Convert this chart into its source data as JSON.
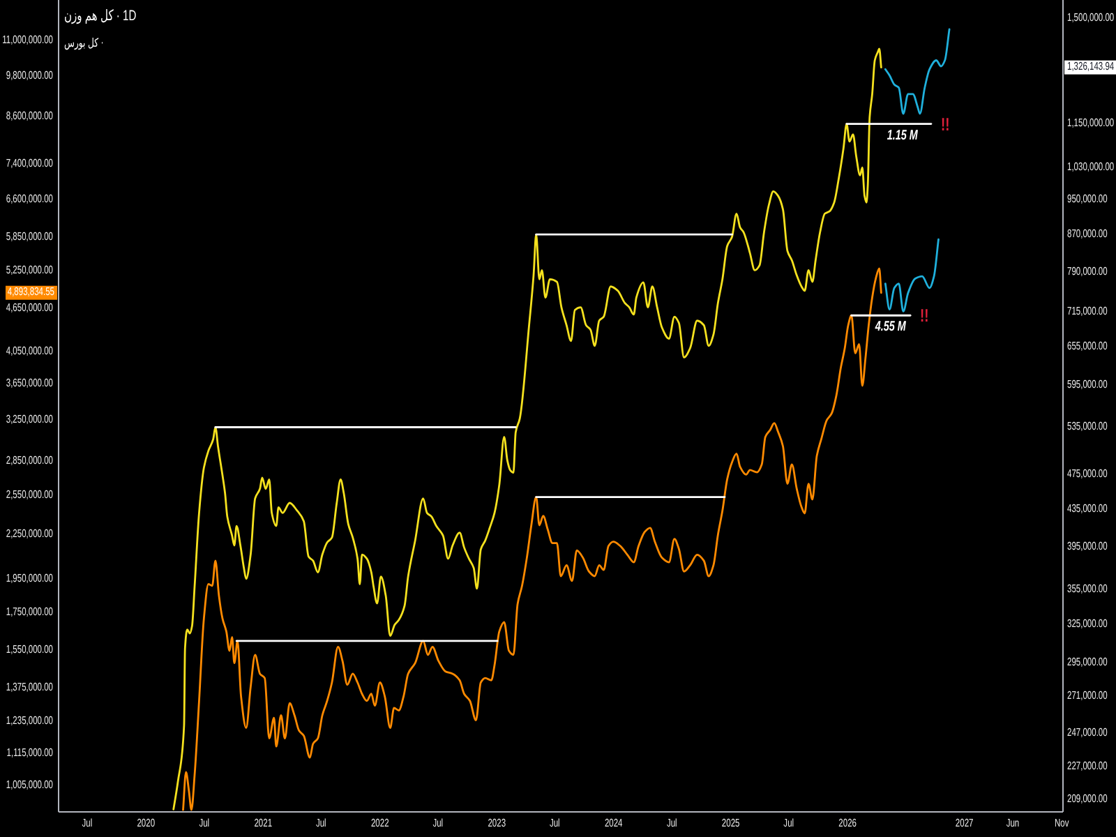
{
  "chart_data": [
    {
      "type": "line",
      "title": "کل هم وزن · 1D",
      "log": true,
      "xlim": [
        "2019-04-03",
        "2027-11-05"
      ],
      "xticks": [
        {
          "value": "2019-07-01",
          "label": "Jul"
        },
        {
          "value": "2020-01-01",
          "label": "2020"
        },
        {
          "value": "2020-07-01",
          "label": "Jul"
        },
        {
          "value": "2021-01-01",
          "label": "2021"
        },
        {
          "value": "2021-07-01",
          "label": "Jul"
        },
        {
          "value": "2022-01-01",
          "label": "2022"
        },
        {
          "value": "2022-07-01",
          "label": "Jul"
        },
        {
          "value": "2023-01-01",
          "label": "2023"
        },
        {
          "value": "2023-07-01",
          "label": "Jul"
        },
        {
          "value": "2024-01-01",
          "label": "2024"
        },
        {
          "value": "2024-07-01",
          "label": "Jul"
        },
        {
          "value": "2025-01-01",
          "label": "2025"
        },
        {
          "value": "2025-07-01",
          "label": "Jul"
        },
        {
          "value": "2026-01-01",
          "label": "2026"
        },
        {
          "value": "2027-01-01",
          "label": "2027"
        },
        {
          "value": "2027-06-01",
          "label": "Jun"
        },
        {
          "value": "2027-11-01",
          "label": "Nov"
        }
      ],
      "ylim": [
        202700,
        1572000
      ],
      "yticks": [
        {
          "value": 209000,
          "label": "209,000.00"
        },
        {
          "value": 227000,
          "label": "227,000.00"
        },
        {
          "value": 247000,
          "label": "247,000.00"
        },
        {
          "value": 271000,
          "label": "271,000.00"
        },
        {
          "value": 295000,
          "label": "295,000.00"
        },
        {
          "value": 325000,
          "label": "325,000.00"
        },
        {
          "value": 355000,
          "label": "355,000.00"
        },
        {
          "value": 395000,
          "label": "395,000.00"
        },
        {
          "value": 435000,
          "label": "435,000.00"
        },
        {
          "value": 475000,
          "label": "475,000.00"
        },
        {
          "value": 535000,
          "label": "535,000.00"
        },
        {
          "value": 595000,
          "label": "595,000.00"
        },
        {
          "value": 655000,
          "label": "655,000.00"
        },
        {
          "value": 715000,
          "label": "715,000.00"
        },
        {
          "value": 790000,
          "label": "790,000.00"
        },
        {
          "value": 870000,
          "label": "870,000.00"
        },
        {
          "value": 950000,
          "label": "950,000.00"
        },
        {
          "value": 1030000,
          "label": "1,030,000.00"
        },
        {
          "value": 1150000,
          "label": "1,150,000.00"
        },
        {
          "value": 1500000,
          "label": "1,500,000.00"
        },
        {
          "value": 1326143.94,
          "label": "1,326,143.94"
        }
      ],
      "series": [
        {
          "color": "#f5e11e",
          "x": [
            "2020-03-27",
            "2020-04-10",
            "2020-04-29",
            "2020-05-02",
            "2020-05-09",
            "2020-05-17",
            "2020-05-24",
            "2020-06-01",
            "2020-06-15",
            "2020-06-30",
            "2020-07-14",
            "2020-07-29",
            "2020-08-05",
            "2020-08-13",
            "2020-08-27",
            "2020-09-04",
            "2020-09-11",
            "2020-09-26",
            "2020-10-03",
            "2020-10-10",
            "2020-10-22",
            "2020-11-02",
            "2020-11-09",
            "2020-11-23",
            "2020-12-07",
            "2020-12-22",
            "2020-12-29",
            "2021-01-09",
            "2021-01-20",
            "2021-01-28",
            "2021-02-11",
            "2021-02-18",
            "2021-03-03",
            "2021-03-25",
            "2021-04-16",
            "2021-05-08",
            "2021-05-23",
            "2021-06-06",
            "2021-06-21",
            "2021-07-05",
            "2021-07-20",
            "2021-08-04",
            "2021-08-19",
            "2021-08-31",
            "2021-09-10",
            "2021-09-24",
            "2021-10-08",
            "2021-10-23",
            "2021-10-30",
            "2021-11-06",
            "2021-11-21",
            "2021-12-05",
            "2021-12-12",
            "2021-12-23",
            "2022-01-04",
            "2022-01-19",
            "2022-02-02",
            "2022-02-16",
            "2022-03-01",
            "2022-03-19",
            "2022-03-30",
            "2022-04-21",
            "2022-05-16",
            "2022-05-28",
            "2022-06-11",
            "2022-06-26",
            "2022-07-17",
            "2022-08-02",
            "2022-08-16",
            "2022-09-07",
            "2022-09-21",
            "2022-10-06",
            "2022-10-21",
            "2022-10-31",
            "2022-11-12",
            "2022-11-26",
            "2022-12-10",
            "2022-12-25",
            "2023-01-09",
            "2023-01-24",
            "2023-02-03",
            "2023-02-12",
            "2023-02-22",
            "2023-03-01",
            "2023-03-14",
            "2023-04-12",
            "2023-04-26",
            "2023-05-04",
            "2023-05-14",
            "2023-05-22",
            "2023-06-02",
            "2023-06-16",
            "2023-07-08",
            "2023-07-22",
            "2023-08-07",
            "2023-08-21",
            "2023-09-02",
            "2023-09-20",
            "2023-10-07",
            "2023-10-21",
            "2023-11-03",
            "2023-11-17",
            "2023-12-01",
            "2023-12-23",
            "2024-01-14",
            "2024-02-05",
            "2024-02-19",
            "2024-03-04",
            "2024-03-12",
            "2024-04-03",
            "2024-04-17",
            "2024-05-01",
            "2024-05-16",
            "2024-05-31",
            "2024-06-22",
            "2024-07-09",
            "2024-07-23",
            "2024-08-08",
            "2024-08-27",
            "2024-09-18",
            "2024-10-09",
            "2024-10-24",
            "2024-11-08",
            "2024-11-22",
            "2024-12-06",
            "2024-12-21",
            "2025-01-05",
            "2025-01-19",
            "2025-01-30",
            "2025-02-10",
            "2025-02-24",
            "2025-03-02",
            "2025-03-17",
            "2025-04-01",
            "2025-04-15",
            "2025-04-30",
            "2025-05-14",
            "2025-05-29",
            "2025-06-13",
            "2025-06-27",
            "2025-07-11",
            "2025-07-26",
            "2025-08-10",
            "2025-08-20",
            "2025-09-01",
            "2025-09-13",
            "2025-09-23",
            "2025-10-07",
            "2025-10-22",
            "2025-11-05",
            "2025-11-20",
            "2025-12-04",
            "2025-12-19",
            "2025-12-29",
            "2026-01-07",
            "2026-01-18",
            "2026-01-28",
            "2026-02-09",
            "2026-02-16",
            "2026-02-23",
            "2026-03-01",
            "2026-03-05",
            "2026-03-11",
            "2026-03-19",
            "2026-03-27",
            "2026-04-06",
            "2026-04-10",
            "2026-04-16"
          ],
          "values": [
            204000,
            219000,
            252000,
            306000,
            321000,
            318000,
            324000,
            358000,
            431000,
            483000,
            504000,
            519000,
            535000,
            510000,
            474000,
            453000,
            427000,
            407000,
            397000,
            417000,
            397000,
            375000,
            365000,
            388000,
            447000,
            458000,
            471000,
            458000,
            469000,
            431000,
            417000,
            437000,
            431000,
            442000,
            434000,
            422000,
            386000,
            382000,
            371000,
            388000,
            400000,
            405000,
            442000,
            469000,
            453000,
            419000,
            405000,
            384000,
            360000,
            388000,
            384000,
            371000,
            358000,
            343000,
            367000,
            350000,
            316000,
            325000,
            329000,
            341000,
            367000,
            402000,
            447000,
            431000,
            427000,
            417000,
            407000,
            384000,
            397000,
            410000,
            395000,
            384000,
            375000,
            356000,
            393000,
            402000,
            415000,
            431000,
            463000,
            522000,
            492000,
            480000,
            477000,
            528000,
            547000,
            692000,
            785000,
            870000,
            777000,
            795000,
            742000,
            777000,
            772000,
            724000,
            692000,
            665000,
            719000,
            724000,
            692000,
            684000,
            657000,
            700000,
            707000,
            763000,
            755000,
            732000,
            724000,
            711000,
            742000,
            771000,
            724000,
            763000,
            724000,
            688000,
            669000,
            707000,
            696000,
            638000,
            653000,
            700000,
            692000,
            657000,
            676000,
            732000,
            777000,
            845000,
            865000,
            917000,
            886000,
            875000,
            845000,
            830000,
            795000,
            805000,
            875000,
            937000,
            970000,
            959000,
            927000,
            835000,
            815000,
            785000,
            763000,
            755000,
            795000,
            772000,
            815000,
            875000,
            917000,
            922000,
            943000,
            1000000,
            1080000,
            1150000,
            1100000,
            1120000,
            1060000,
            1010000,
            1030000,
            959000,
            943000,
            982000,
            1170000,
            1240000,
            1350000,
            1380000,
            1390000,
            1326143.94
          ]
        },
        {
          "color": "#1fb0dc",
          "x": [
            "2026-04-29",
            "2026-05-12",
            "2026-05-27",
            "2026-06-10",
            "2026-06-24",
            "2026-07-09",
            "2026-07-24",
            "2026-08-08",
            "2026-08-15",
            "2026-08-30",
            "2026-09-14",
            "2026-10-05",
            "2026-10-20",
            "2026-11-01",
            "2026-11-15"
          ],
          "values": [
            1320000,
            1300000,
            1270000,
            1260000,
            1180000,
            1240000,
            1240000,
            1200000,
            1180000,
            1260000,
            1320000,
            1350000,
            1330000,
            1350000,
            1460000
          ]
        },
        {
          "color": "#ffffff",
          "x": [
            "2020-08-05",
            "2023-03-01"
          ],
          "values": [
            535000,
            535000
          ]
        },
        {
          "color": "#ffffff",
          "x": [
            "2023-05-04",
            "2025-01-05"
          ],
          "values": [
            870000,
            870000
          ]
        },
        {
          "color": "#ffffff",
          "x": [
            "2025-12-29",
            "2026-09-19"
          ],
          "values": [
            1150000,
            1150000
          ]
        }
      ],
      "annotations": [
        {
          "text": "1.15 M",
          "x": "2026-06-21",
          "y": 1150000
        },
        "!!"
      ]
    },
    {
      "type": "line",
      "title": "کل بورس ·",
      "log": true,
      "tick_labels": "y",
      "xlim": [
        "2019-04-03",
        "2027-11-05"
      ],
      "ylim": [
        924000,
        12530000
      ],
      "yticks": [
        {
          "value": 1005000,
          "label": "1,005,000.00"
        },
        {
          "value": 1115000,
          "label": "1,115,000.00"
        },
        {
          "value": 1235000,
          "label": "1,235,000.00"
        },
        {
          "value": 1375000,
          "label": "1,375,000.00"
        },
        {
          "value": 1550000,
          "label": "1,550,000.00"
        },
        {
          "value": 1750000,
          "label": "1,750,000.00"
        },
        {
          "value": 1950000,
          "label": "1,950,000.00"
        },
        {
          "value": 2250000,
          "label": "2,250,000.00"
        },
        {
          "value": 2550000,
          "label": "2,550,000.00"
        },
        {
          "value": 2850000,
          "label": "2,850,000.00"
        },
        {
          "value": 3250000,
          "label": "3,250,000.00"
        },
        {
          "value": 3650000,
          "label": "3,650,000.00"
        },
        {
          "value": 4050000,
          "label": "4,050,000.00"
        },
        {
          "value": 4650000,
          "label": "4,650,000.00"
        },
        {
          "value": 5250000,
          "label": "5,250,000.00"
        },
        {
          "value": 5850000,
          "label": "5,850,000.00"
        },
        {
          "value": 6600000,
          "label": "6,600,000.00"
        },
        {
          "value": 7400000,
          "label": "7,400,000.00"
        },
        {
          "value": 8600000,
          "label": "8,600,000.00"
        },
        {
          "value": 9800000,
          "label": "9,800,000.00"
        },
        {
          "value": 11000000,
          "label": "11,000,000.00"
        },
        {
          "value": 4893834.55,
          "label": "4,893,834.55"
        }
      ],
      "series": [
        {
          "color": "#ff8a00",
          "x": [
            "2020-04-26",
            "2020-05-05",
            "2020-05-14",
            "2020-05-22",
            "2020-06-01",
            "2020-06-15",
            "2020-06-30",
            "2020-07-14",
            "2020-07-26",
            "2020-08-05",
            "2020-08-16",
            "2020-08-27",
            "2020-09-08",
            "2020-09-18",
            "2020-09-26",
            "2020-10-03",
            "2020-10-13",
            "2020-10-24",
            "2020-11-09",
            "2020-11-23",
            "2020-12-07",
            "2020-12-22",
            "2021-01-06",
            "2021-01-20",
            "2021-02-04",
            "2021-02-11",
            "2021-02-26",
            "2021-03-10",
            "2021-03-25",
            "2021-04-09",
            "2021-04-23",
            "2021-05-08",
            "2021-05-27",
            "2021-06-06",
            "2021-06-21",
            "2021-07-05",
            "2021-07-20",
            "2021-08-04",
            "2021-08-23",
            "2021-09-06",
            "2021-09-21",
            "2021-10-08",
            "2021-10-23",
            "2021-11-06",
            "2021-11-21",
            "2021-12-05",
            "2021-12-16",
            "2022-01-01",
            "2022-01-16",
            "2022-02-02",
            "2022-02-14",
            "2022-03-01",
            "2022-03-16",
            "2022-03-30",
            "2022-04-21",
            "2022-05-16",
            "2022-05-31",
            "2022-06-14",
            "2022-07-03",
            "2022-07-25",
            "2022-08-16",
            "2022-09-07",
            "2022-09-21",
            "2022-10-09",
            "2022-10-28",
            "2022-11-12",
            "2022-11-26",
            "2022-12-15",
            "2022-12-25",
            "2023-01-09",
            "2023-01-24",
            "2023-02-08",
            "2023-02-22",
            "2023-03-07",
            "2023-03-21",
            "2023-04-05",
            "2023-04-19",
            "2023-05-04",
            "2023-05-14",
            "2023-05-26",
            "2023-06-09",
            "2023-06-24",
            "2023-07-08",
            "2023-07-20",
            "2023-08-07",
            "2023-08-24",
            "2023-09-08",
            "2023-09-27",
            "2023-10-16",
            "2023-11-03",
            "2023-11-17",
            "2023-12-01",
            "2023-12-16",
            "2023-12-31",
            "2024-01-22",
            "2024-02-13",
            "2024-03-04",
            "2024-03-19",
            "2024-04-07",
            "2024-04-24",
            "2024-05-09",
            "2024-05-31",
            "2024-06-22",
            "2024-07-09",
            "2024-07-23",
            "2024-08-08",
            "2024-08-27",
            "2024-09-18",
            "2024-10-09",
            "2024-10-24",
            "2024-11-08",
            "2024-11-22",
            "2024-12-06",
            "2024-12-21",
            "2025-01-05",
            "2025-01-19",
            "2025-01-30",
            "2025-02-18",
            "2025-03-02",
            "2025-03-24",
            "2025-04-08",
            "2025-04-19",
            "2025-05-04",
            "2025-05-17",
            "2025-05-29",
            "2025-06-13",
            "2025-06-27",
            "2025-07-11",
            "2025-07-26",
            "2025-08-10",
            "2025-08-20",
            "2025-09-01",
            "2025-09-13",
            "2025-09-27",
            "2025-10-11",
            "2025-10-28",
            "2025-11-12",
            "2025-11-27",
            "2025-12-11",
            "2025-12-23",
            "2026-01-03",
            "2026-01-13",
            "2026-01-25",
            "2026-02-06",
            "2026-02-16",
            "2026-02-26",
            "2026-03-08",
            "2026-03-19",
            "2026-03-30",
            "2026-04-10",
            "2026-04-16"
          ],
          "values": [
            930000,
            1050000,
            990000,
            930000,
            1040000,
            1320000,
            1720000,
            1920000,
            1910000,
            2070000,
            1850000,
            1720000,
            1650000,
            1550000,
            1620000,
            1490000,
            1600000,
            1340000,
            1210000,
            1380000,
            1530000,
            1440000,
            1420000,
            1170000,
            1250000,
            1140000,
            1260000,
            1170000,
            1310000,
            1260000,
            1200000,
            1180000,
            1100000,
            1150000,
            1170000,
            1260000,
            1320000,
            1400000,
            1570000,
            1500000,
            1390000,
            1440000,
            1400000,
            1350000,
            1320000,
            1350000,
            1300000,
            1400000,
            1340000,
            1210000,
            1290000,
            1280000,
            1340000,
            1440000,
            1490000,
            1600000,
            1530000,
            1570000,
            1500000,
            1450000,
            1440000,
            1410000,
            1350000,
            1320000,
            1240000,
            1400000,
            1420000,
            1410000,
            1480000,
            1650000,
            1700000,
            1550000,
            1530000,
            1800000,
            1910000,
            2090000,
            2320000,
            2540000,
            2320000,
            2390000,
            2290000,
            2190000,
            2190000,
            1970000,
            2040000,
            1940000,
            2140000,
            2090000,
            2000000,
            1970000,
            2040000,
            2010000,
            2170000,
            2200000,
            2170000,
            2110000,
            2060000,
            2170000,
            2270000,
            2300000,
            2200000,
            2090000,
            2060000,
            2220000,
            2150000,
            2000000,
            2040000,
            2110000,
            2070000,
            1970000,
            2040000,
            2250000,
            2430000,
            2690000,
            2840000,
            2920000,
            2800000,
            2730000,
            2770000,
            2750000,
            2820000,
            3080000,
            3150000,
            3220000,
            3130000,
            2990000,
            2650000,
            2820000,
            2610000,
            2460000,
            2410000,
            2650000,
            2520000,
            2900000,
            3060000,
            3250000,
            3320000,
            3520000,
            3850000,
            4090000,
            4410000,
            4550000,
            4030000,
            4150000,
            3630000,
            3970000,
            4410000,
            4820000,
            5120000,
            5290000,
            4893834.55
          ]
        },
        {
          "color": "#1fb0dc",
          "x": [
            "2026-04-29",
            "2026-05-12",
            "2026-05-27",
            "2026-06-10",
            "2026-06-24",
            "2026-07-09",
            "2026-07-31",
            "2026-08-22",
            "2026-09-14",
            "2026-09-28",
            "2026-10-12"
          ],
          "values": [
            5040000,
            4640000,
            4970000,
            5040000,
            4610000,
            4890000,
            5120000,
            5160000,
            4970000,
            5160000,
            5810000
          ]
        },
        {
          "color": "#ffffff",
          "x": [
            "2020-10-10",
            "2023-01-03"
          ],
          "values": [
            1600000,
            1600000
          ]
        },
        {
          "color": "#ffffff",
          "x": [
            "2023-05-04",
            "2024-12-13"
          ],
          "values": [
            2540000,
            2540000
          ]
        },
        {
          "color": "#ffffff",
          "x": [
            "2026-01-13",
            "2026-07-16"
          ],
          "values": [
            4550000,
            4550000
          ]
        }
      ],
      "annotations": [
        {
          "text": "4.55 M",
          "x": "2026-05-15",
          "y": 4550000
        },
        "!!"
      ]
    }
  ]
}
